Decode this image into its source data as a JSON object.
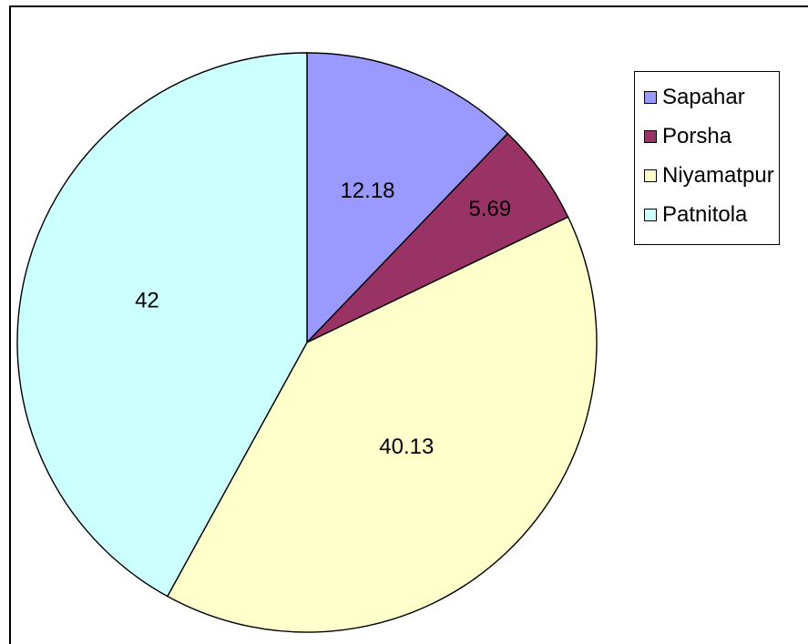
{
  "chart_data": {
    "type": "pie",
    "categories": [
      "Sapahar",
      "Porsha",
      "Niyamatpur",
      "Patnitola"
    ],
    "values": [
      12.18,
      5.69,
      40.13,
      42
    ],
    "value_labels": [
      "12.18",
      "5.69",
      "40.13",
      "42"
    ],
    "colors": [
      "#9999ff",
      "#993366",
      "#ffffcc",
      "#ccffff"
    ],
    "start_angle": "12 o'clock",
    "direction": "clockwise",
    "legend_position": "right"
  }
}
